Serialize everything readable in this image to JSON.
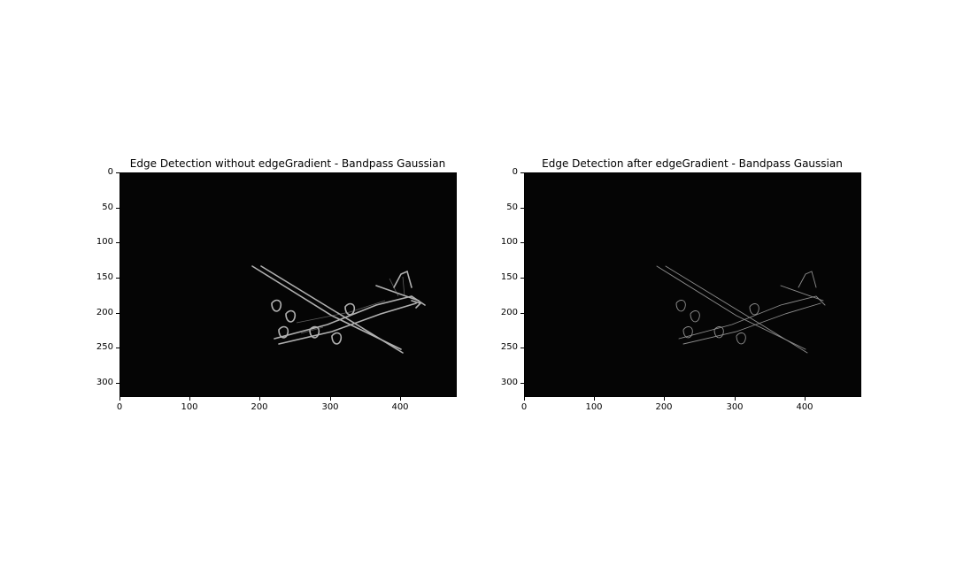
{
  "figure": {
    "panels": [
      {
        "title": "Edge Detection without edgeGradient - Bandpass Gaussian",
        "xticks": [
          "0",
          "100",
          "200",
          "300",
          "400"
        ],
        "yticks": [
          "0",
          "50",
          "100",
          "150",
          "200",
          "250",
          "300"
        ],
        "image": "grayscale edge map of a four-engine propeller airplane on a black background",
        "edge_brightness": 0.75
      },
      {
        "title": "Edge Detection after edgeGradient - Bandpass Gaussian",
        "xticks": [
          "0",
          "100",
          "200",
          "300",
          "400"
        ],
        "yticks": [
          "0",
          "50",
          "100",
          "150",
          "200",
          "250",
          "300"
        ],
        "image": "thinner, sparser grayscale edge map of the same airplane on a black background",
        "edge_brightness": 0.5
      }
    ],
    "colors": {
      "background": "#ffffff",
      "image_background": "#050505",
      "edges": "#d8d8d8"
    }
  }
}
